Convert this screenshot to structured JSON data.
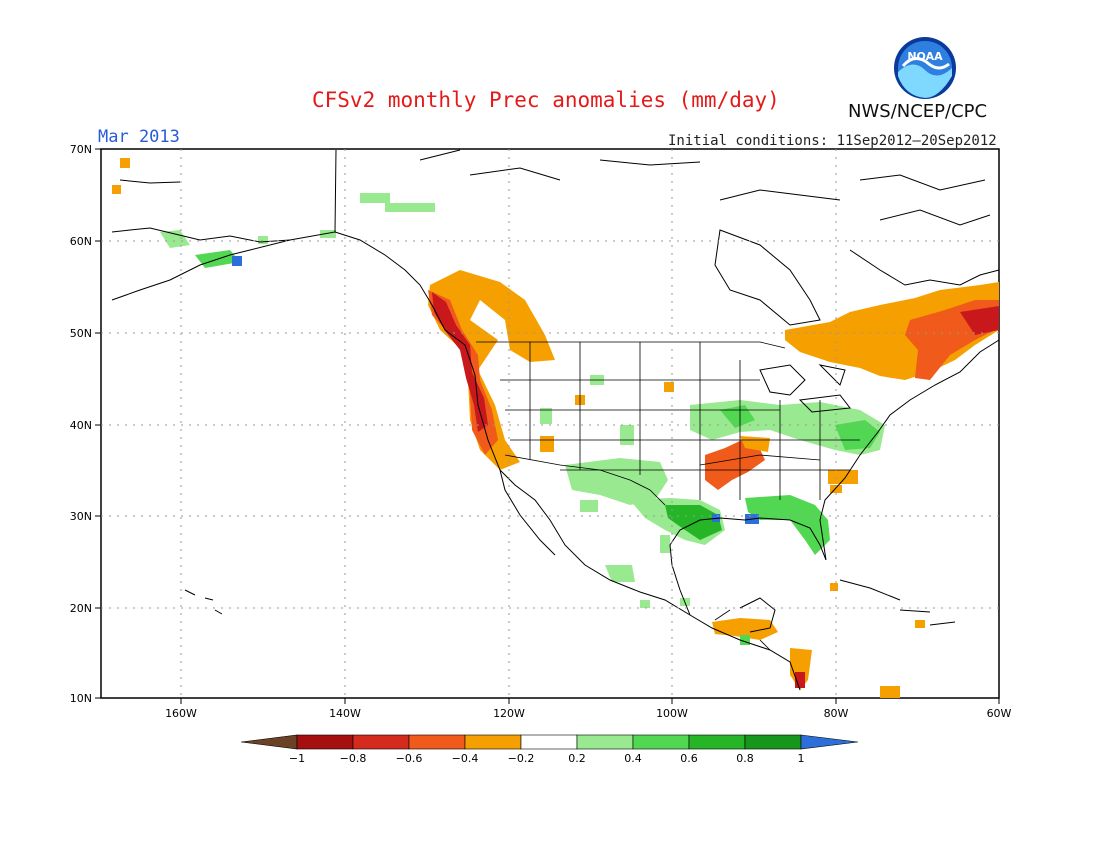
{
  "header": {
    "title": "CFSv2 monthly Prec anomalies (mm/day)",
    "month": "Mar 2013",
    "initial_conditions": "Initial conditions: 11Sep2012–20Sep2012",
    "agency": "NWS/NCEP/CPC",
    "logo_text": "NOAA"
  },
  "map": {
    "region": "North America",
    "lat_labels": [
      "70N",
      "60N",
      "50N",
      "40N",
      "30N",
      "20N",
      "10N"
    ],
    "lon_labels": [
      "160W",
      "140W",
      "120W",
      "100W",
      "80W",
      "60W"
    ]
  },
  "colorbar": {
    "labels": [
      "−1",
      "−0.8",
      "−0.6",
      "−0.4",
      "−0.2",
      "0.2",
      "0.4",
      "0.6",
      "0.8",
      "1"
    ],
    "low_color": "#6b4226",
    "high_color": "#2c6fd8",
    "colors": [
      "#a50f0f",
      "#d42b1e",
      "#f05a1a",
      "#f5a000",
      "#ffffff",
      "#98e98f",
      "#52d752",
      "#26b526",
      "#16961a"
    ]
  }
}
